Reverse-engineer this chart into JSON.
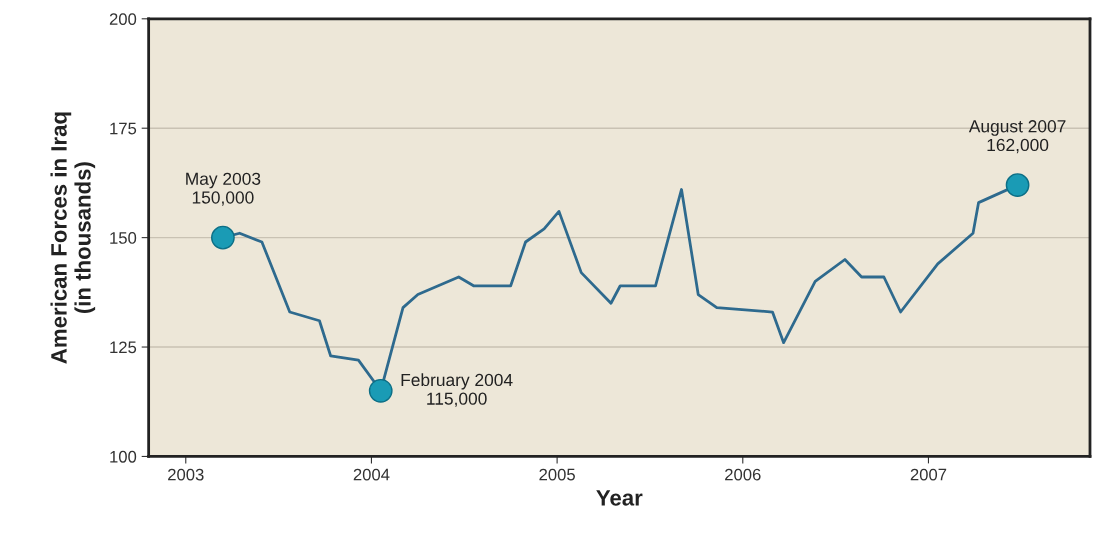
{
  "chart_data": {
    "type": "line",
    "xlabel": "Year",
    "ylabel": "American Forces in Iraq\n(in thousands)",
    "xlim": [
      2002.8,
      2007.87
    ],
    "xticks": [
      2003,
      2004,
      2005,
      2006,
      2007
    ],
    "ylim": [
      100,
      200
    ],
    "yticks": [
      100,
      125,
      150,
      175,
      200
    ],
    "grid": "y",
    "series": [
      {
        "color": "#2e6a8e",
        "x": [
          2003.2,
          2003.29,
          2003.41,
          2003.56,
          2003.72,
          2003.78,
          2003.93,
          2004.05,
          2004.17,
          2004.25,
          2004.36,
          2004.47,
          2004.55,
          2004.75,
          2004.83,
          2004.93,
          2005.01,
          2005.13,
          2005.29,
          2005.34,
          2005.53,
          2005.67,
          2005.76,
          2005.86,
          2006.16,
          2006.22,
          2006.39,
          2006.55,
          2006.64,
          2006.76,
          2006.85,
          2007.05,
          2007.24,
          2007.27,
          2007.48
        ],
        "values": [
          150,
          151,
          149,
          133,
          131,
          123,
          122,
          115,
          134,
          137,
          139,
          141,
          139,
          139,
          149,
          152,
          156,
          142,
          135,
          139,
          139,
          161,
          137,
          134,
          133,
          126,
          140,
          145,
          141,
          141,
          133,
          144,
          151,
          158,
          162
        ]
      },
      {
        "type": "scatter",
        "color": "#1a9bb5",
        "marker": "circle",
        "x": [
          2003.2,
          2004.05,
          2007.48
        ],
        "values": [
          150,
          115,
          162
        ]
      }
    ],
    "annotations": [
      {
        "text": "May 2003\n150,000",
        "x": 2003.2,
        "y": 150
      },
      {
        "text": "February 2004\n115,000",
        "x": 2004.05,
        "y": 115
      },
      {
        "text": "August 2007\n162,000",
        "x": 2007.48,
        "y": 162
      }
    ]
  }
}
